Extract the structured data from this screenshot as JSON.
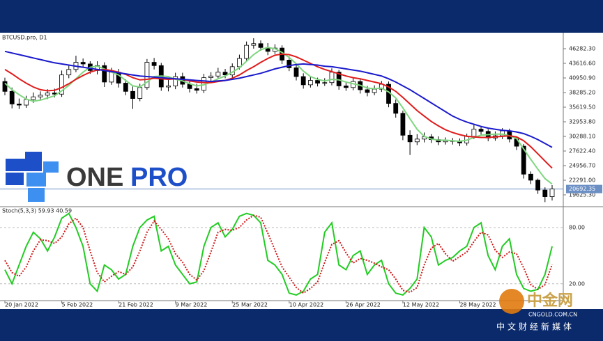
{
  "chart_data": [
    {
      "type": "candlestick",
      "title": "BTCUSD.pro, D1",
      "open": [
        40300,
        38500,
        36200,
        36000,
        37000,
        37500,
        37800,
        38200,
        38000,
        41500,
        42500,
        43800,
        43500,
        42300,
        43200,
        40200,
        42000,
        40000,
        38500,
        37200,
        39200,
        43800,
        43200,
        39300,
        39500,
        41200,
        39800,
        39000,
        38700,
        41000,
        41300,
        42000,
        41500,
        43000,
        44500,
        46900,
        47200,
        46500,
        45800,
        46400,
        44200,
        42800,
        41200,
        39700,
        40500,
        40000,
        40100,
        42000,
        39500,
        39200,
        40300,
        38800,
        38300,
        38900,
        39800,
        36300,
        34500,
        30500,
        29300,
        29800,
        30200,
        29700,
        29300,
        29500,
        29400,
        29100,
        30300,
        31600,
        31200,
        30000,
        30400,
        31300,
        29800,
        28500,
        23400,
        22300,
        20500,
        19300
      ],
      "high": [
        41000,
        39200,
        37200,
        37700,
        38300,
        38500,
        38900,
        39000,
        42300,
        43200,
        45000,
        44500,
        44000,
        44000,
        43800,
        42800,
        42600,
        40700,
        39400,
        39900,
        44400,
        44600,
        43700,
        40600,
        41900,
        41900,
        40400,
        39900,
        41700,
        42000,
        42800,
        42600,
        43600,
        45200,
        47600,
        48200,
        47800,
        47300,
        47100,
        46900,
        44900,
        43400,
        41800,
        41300,
        41000,
        40900,
        42700,
        42400,
        40200,
        40900,
        40800,
        39500,
        39600,
        40400,
        40300,
        37000,
        35000,
        31400,
        30700,
        31000,
        30700,
        30300,
        30100,
        30000,
        29900,
        30800,
        32400,
        32200,
        31600,
        31200,
        31800,
        31700,
        30100,
        28900,
        23900,
        22600,
        21000,
        21400
      ],
      "low": [
        37800,
        35400,
        35300,
        35500,
        36400,
        36900,
        37100,
        37400,
        37500,
        40900,
        42000,
        42800,
        41700,
        41600,
        39300,
        39700,
        39200,
        37800,
        35300,
        36700,
        38800,
        42500,
        38600,
        38500,
        38900,
        39200,
        38300,
        38100,
        38200,
        40400,
        40800,
        40900,
        41000,
        42500,
        44000,
        46300,
        45900,
        45100,
        45300,
        43500,
        42200,
        40500,
        39000,
        39200,
        39400,
        39500,
        39600,
        38800,
        38600,
        38700,
        38100,
        37600,
        37800,
        38400,
        35600,
        33700,
        29600,
        26900,
        28700,
        29200,
        29100,
        28700,
        28800,
        28800,
        28500,
        28600,
        29800,
        30500,
        29400,
        29500,
        29800,
        29200,
        27800,
        22600,
        21600,
        19800,
        18300,
        18600
      ],
      "close": [
        38500,
        36200,
        36000,
        37000,
        37500,
        37800,
        38200,
        38000,
        41500,
        42500,
        43800,
        43500,
        42300,
        43200,
        40200,
        42000,
        40000,
        38500,
        37200,
        39200,
        43800,
        43200,
        39300,
        39500,
        41200,
        39800,
        39000,
        38700,
        41000,
        41300,
        42000,
        41500,
        43000,
        44500,
        46900,
        47200,
        46500,
        45800,
        46400,
        44200,
        42800,
        41200,
        39700,
        40500,
        40000,
        40100,
        42000,
        39500,
        39200,
        40300,
        38800,
        38300,
        38900,
        39800,
        36300,
        34500,
        30500,
        29300,
        29800,
        30200,
        29700,
        29300,
        29500,
        29400,
        29100,
        30300,
        31600,
        31200,
        30000,
        30400,
        31300,
        29800,
        28500,
        23400,
        22300,
        20500,
        19300,
        20692
      ],
      "series": [
        {
          "color": "#7fd67f",
          "values": [
            40000,
            38800,
            37900,
            37100,
            36700,
            36900,
            37300,
            37700,
            38600,
            39600,
            40800,
            42000,
            42900,
            43100,
            42600,
            42000,
            41500,
            40500,
            39500,
            39300,
            40200,
            41200,
            41300,
            41200,
            40700,
            40400,
            39900,
            39500,
            39700,
            40200,
            40800,
            41300,
            42000,
            42800,
            44000,
            45200,
            46100,
            46500,
            46300,
            45600,
            44700,
            43500,
            42200,
            41200,
            40700,
            40400,
            40700,
            40600,
            40200,
            39900,
            39600,
            39100,
            39000,
            39100,
            38400,
            37300,
            35500,
            33500,
            31600,
            30300,
            29800,
            29600,
            29600,
            29500,
            29400,
            29600,
            30100,
            30500,
            30600,
            30700,
            30700,
            30400,
            29900,
            28000,
            26100,
            24300,
            22600,
            21600
          ]
        },
        {
          "color": "#e01b1b",
          "values": [
            42500,
            41700,
            40800,
            40000,
            39300,
            38800,
            38600,
            38700,
            39200,
            39900,
            40700,
            41400,
            42000,
            42400,
            42500,
            42300,
            42000,
            41600,
            41000,
            40600,
            40700,
            40900,
            40800,
            40700,
            40800,
            40700,
            40400,
            40200,
            40100,
            40100,
            40300,
            40500,
            40900,
            41500,
            42300,
            43000,
            43800,
            44500,
            45100,
            45300,
            45200,
            44800,
            44200,
            43600,
            43000,
            42500,
            42100,
            41700,
            41300,
            41000,
            40800,
            40500,
            40200,
            39900,
            39300,
            38500,
            37400,
            36200,
            35000,
            34000,
            33000,
            32200,
            31500,
            31000,
            30600,
            30300,
            30200,
            30100,
            30100,
            30200,
            30300,
            30400,
            30200,
            29500,
            28400,
            27100,
            25800,
            24500
          ]
        },
        {
          "color": "#1a1acc",
          "values": [
            45800,
            45500,
            45200,
            44900,
            44600,
            44300,
            44000,
            43700,
            43500,
            43300,
            43100,
            42900,
            42700,
            42500,
            42300,
            42100,
            41900,
            41700,
            41500,
            41300,
            41200,
            41100,
            41000,
            40900,
            40800,
            40700,
            40600,
            40500,
            40400,
            40300,
            40400,
            40500,
            40700,
            40900,
            41200,
            41500,
            41800,
            42200,
            42600,
            42900,
            43200,
            43400,
            43500,
            43400,
            43300,
            43100,
            43000,
            42800,
            42600,
            42400,
            42200,
            41900,
            41600,
            41300,
            40800,
            40200,
            39500,
            38800,
            38000,
            37200,
            36400,
            35600,
            34800,
            34000,
            33400,
            32900,
            32500,
            32100,
            31800,
            31600,
            31400,
            31300,
            31100,
            30800,
            30300,
            29700,
            29000,
            28300
          ]
        }
      ],
      "price_line": 20692.35,
      "price_line_color": "#6c8fc4",
      "ylim": [
        17594,
        48821
      ],
      "yticks": [
        {
          "value": 46282.3,
          "label": "46282.30"
        },
        {
          "value": 43616.6,
          "label": "43616.60"
        },
        {
          "value": 40950.9,
          "label": "40950.90"
        },
        {
          "value": 38285.2,
          "label": "38285.20"
        },
        {
          "value": 35619.5,
          "label": "35619.50"
        },
        {
          "value": 32953.8,
          "label": "32953.80"
        },
        {
          "value": 30288.1,
          "label": "30288.10"
        },
        {
          "value": 27622.4,
          "label": "27622.40"
        },
        {
          "value": 24956.7,
          "label": "24956.70"
        },
        {
          "value": 22291,
          "label": "22291.00"
        },
        {
          "value": 19625.3,
          "label": "19625.30"
        }
      ],
      "xlim": [
        0,
        77
      ],
      "xticks": [
        {
          "value": 0,
          "label": "20 Jan 2022"
        },
        {
          "value": 8,
          "label": "5 Feb 2022"
        },
        {
          "value": 16,
          "label": "21 Feb 2022"
        },
        {
          "value": 24,
          "label": "9 Mar 2022"
        },
        {
          "value": 32,
          "label": "25 Mar 2022"
        },
        {
          "value": 40,
          "label": "10 Apr 2022"
        },
        {
          "value": 48,
          "label": "26 Apr 2022"
        },
        {
          "value": 56,
          "label": "12 May 2022"
        },
        {
          "value": 64,
          "label": "28 May 2022"
        }
      ]
    },
    {
      "type": "line",
      "title": "Stoch(5,3,3) 59.93 40.59",
      "series": [
        {
          "color": "#22cc22",
          "values": [
            35,
            20,
            40,
            60,
            75,
            68,
            55,
            70,
            90,
            95,
            80,
            60,
            20,
            12,
            40,
            35,
            25,
            30,
            60,
            80,
            88,
            92,
            55,
            60,
            40,
            30,
            20,
            22,
            60,
            80,
            85,
            70,
            78,
            92,
            95,
            93,
            85,
            45,
            40,
            30,
            10,
            8,
            12,
            25,
            30,
            75,
            85,
            40,
            35,
            50,
            55,
            30,
            40,
            45,
            20,
            10,
            8,
            15,
            25,
            80,
            70,
            40,
            45,
            48,
            55,
            60,
            80,
            85,
            50,
            35,
            60,
            68,
            30,
            15,
            12,
            14,
            30,
            59.93
          ]
        },
        {
          "color": "#d01818",
          "dashed": true,
          "values": [
            45,
            32,
            28,
            38,
            55,
            67,
            66,
            63,
            70,
            84,
            90,
            80,
            55,
            32,
            22,
            28,
            33,
            30,
            38,
            55,
            75,
            87,
            78,
            68,
            52,
            43,
            30,
            24,
            34,
            54,
            75,
            78,
            77,
            80,
            88,
            93,
            91,
            74,
            56,
            38,
            27,
            16,
            10,
            15,
            22,
            43,
            62,
            66,
            53,
            42,
            47,
            45,
            42,
            38,
            35,
            25,
            13,
            11,
            16,
            40,
            58,
            63,
            52,
            44,
            49,
            54,
            65,
            75,
            72,
            56,
            48,
            54,
            52,
            37,
            19,
            14,
            19,
            40.59
          ]
        }
      ],
      "ylim": [
        2,
        100
      ],
      "yticks": [
        {
          "value": 80,
          "label": "80.00"
        },
        {
          "value": 20,
          "label": "20.00"
        }
      ]
    }
  ],
  "logo": [
    "ONE",
    "PRO"
  ],
  "watermark": {
    "brand": "中金网",
    "site": "CNGOLD.COM.CN",
    "slogan": "中文财经新媒体"
  }
}
